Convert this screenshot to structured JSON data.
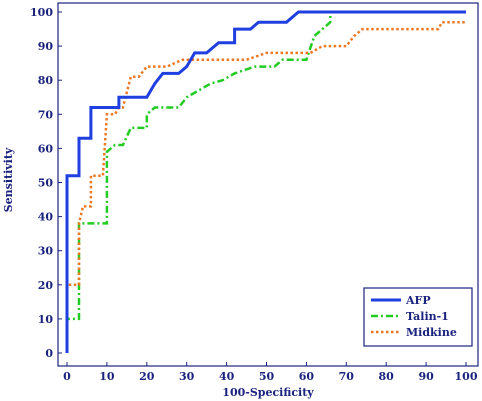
{
  "chart_data": {
    "type": "line",
    "title": "",
    "xlabel": "100-Specificity",
    "ylabel": "Sensitivity",
    "xlim": [
      0,
      100
    ],
    "ylim": [
      0,
      100
    ],
    "xticks": [
      0,
      10,
      20,
      30,
      40,
      50,
      60,
      70,
      80,
      90,
      100
    ],
    "yticks": [
      0,
      10,
      20,
      30,
      40,
      50,
      60,
      70,
      80,
      90,
      100
    ],
    "grid": false,
    "legend_position": "bottom-right",
    "series": [
      {
        "name": "AFP",
        "color": "#1f3fe0",
        "style": "solid",
        "points": [
          [
            0,
            0
          ],
          [
            0,
            52
          ],
          [
            3,
            52
          ],
          [
            3,
            63
          ],
          [
            6,
            63
          ],
          [
            6,
            72
          ],
          [
            10,
            72
          ],
          [
            13,
            72
          ],
          [
            13,
            75
          ],
          [
            20,
            75
          ],
          [
            22,
            79
          ],
          [
            24,
            82
          ],
          [
            28,
            82
          ],
          [
            30,
            84
          ],
          [
            32,
            88
          ],
          [
            35,
            88
          ],
          [
            38,
            91
          ],
          [
            42,
            91
          ],
          [
            42,
            95
          ],
          [
            46,
            95
          ],
          [
            48,
            97
          ],
          [
            55,
            97
          ],
          [
            58,
            100
          ],
          [
            100,
            100
          ]
        ]
      },
      {
        "name": "Talin-1",
        "color": "#22cc22",
        "style": "dashdot",
        "points": [
          [
            0,
            0
          ],
          [
            0,
            10
          ],
          [
            3,
            10
          ],
          [
            3,
            38
          ],
          [
            10,
            38
          ],
          [
            10,
            59
          ],
          [
            12,
            61
          ],
          [
            14,
            61
          ],
          [
            16,
            66
          ],
          [
            20,
            66
          ],
          [
            20,
            70
          ],
          [
            22,
            72
          ],
          [
            28,
            72
          ],
          [
            30,
            75
          ],
          [
            33,
            77
          ],
          [
            36,
            79
          ],
          [
            39,
            80
          ],
          [
            42,
            82
          ],
          [
            47,
            84
          ],
          [
            52,
            84
          ],
          [
            54,
            86
          ],
          [
            60,
            86
          ],
          [
            62,
            93
          ],
          [
            64,
            95
          ],
          [
            66,
            97
          ],
          [
            66,
            100
          ],
          [
            100,
            100
          ]
        ]
      },
      {
        "name": "Midkine",
        "color": "#ee7722",
        "style": "dotted",
        "points": [
          [
            0,
            0
          ],
          [
            0,
            20
          ],
          [
            3,
            20
          ],
          [
            3,
            38
          ],
          [
            4,
            43
          ],
          [
            6,
            43
          ],
          [
            6,
            52
          ],
          [
            9,
            52
          ],
          [
            10,
            70
          ],
          [
            12,
            70
          ],
          [
            13,
            72
          ],
          [
            14,
            72
          ],
          [
            16,
            81
          ],
          [
            18,
            81
          ],
          [
            20,
            84
          ],
          [
            25,
            84
          ],
          [
            29,
            86
          ],
          [
            45,
            86
          ],
          [
            50,
            88
          ],
          [
            61,
            88
          ],
          [
            64,
            90
          ],
          [
            70,
            90
          ],
          [
            72,
            93
          ],
          [
            74,
            95
          ],
          [
            93,
            95
          ],
          [
            94,
            97
          ],
          [
            100,
            97
          ]
        ]
      }
    ]
  }
}
